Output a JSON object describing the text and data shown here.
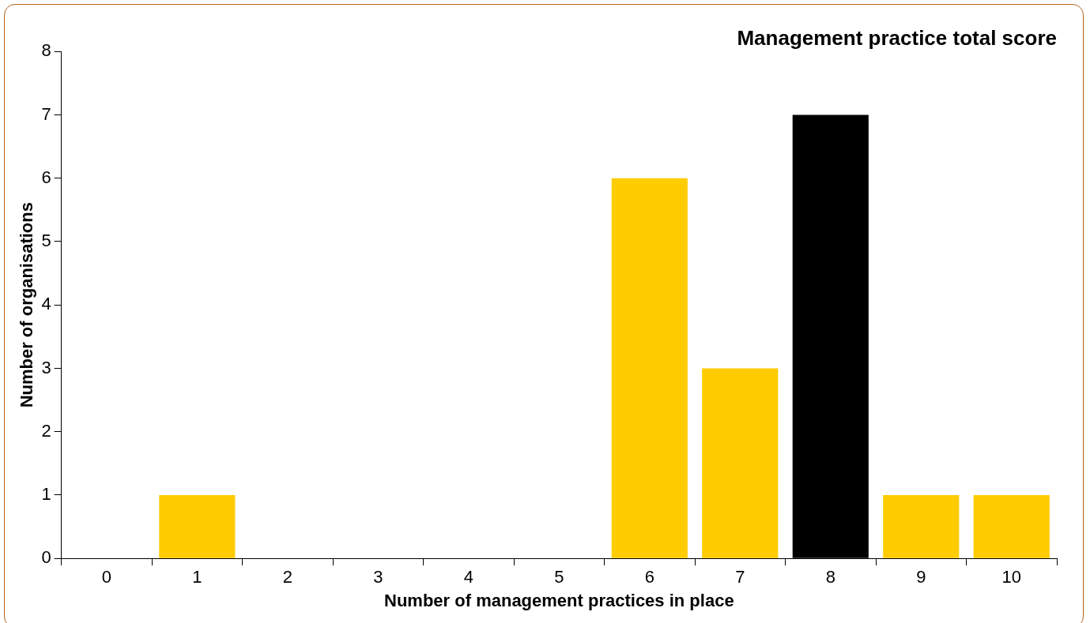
{
  "chart_data": {
    "type": "bar",
    "title": "Management practice total score",
    "xlabel": "Number of management practices in place",
    "ylabel": "Number of organisations",
    "categories": [
      "0",
      "1",
      "2",
      "3",
      "4",
      "5",
      "6",
      "7",
      "8",
      "9",
      "10"
    ],
    "values": [
      0,
      1,
      0,
      0,
      0,
      0,
      6,
      3,
      7,
      1,
      1
    ],
    "colors": [
      "#ffcc00",
      "#ffcc00",
      "#ffcc00",
      "#ffcc00",
      "#ffcc00",
      "#ffcc00",
      "#ffcc00",
      "#ffcc00",
      "#000000",
      "#ffcc00",
      "#ffcc00"
    ],
    "ylim": [
      0,
      8
    ],
    "yticks": [
      0,
      1,
      2,
      3,
      4,
      5,
      6,
      7,
      8
    ],
    "grid": false,
    "legend": false
  }
}
